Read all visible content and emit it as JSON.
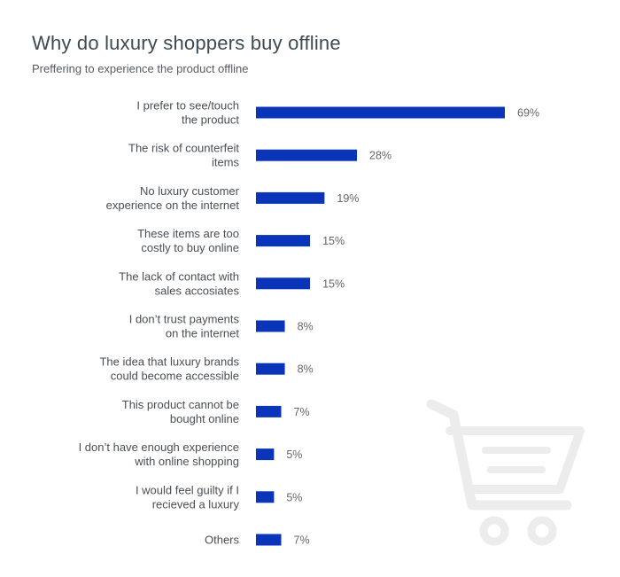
{
  "title": "Why do luxury shoppers buy offline",
  "subtitle": "Preffering to experience the product offline",
  "colors": {
    "bar": "#0b35b8",
    "cart": "#ececec"
  },
  "icons": [
    "shopping-cart-icon"
  ],
  "chart_data": {
    "type": "bar",
    "orientation": "horizontal",
    "title": "Why do luxury shoppers buy offline",
    "subtitle": "Preffering to experience the product offline",
    "xlabel": "",
    "ylabel": "",
    "xlim": [
      0,
      69
    ],
    "grid": false,
    "legend": "none",
    "unit": "%",
    "categories": [
      [
        "I prefer to see/touch",
        "the product"
      ],
      [
        "The risk of counterfeit",
        "items"
      ],
      [
        "No luxury customer",
        "experience on the internet"
      ],
      [
        "These items are too",
        "costly to buy online"
      ],
      [
        "The lack of contact with",
        "sales accosiates"
      ],
      [
        "I don’t trust payments",
        "on the internet"
      ],
      [
        "The idea that luxury brands",
        "could become accessible"
      ],
      [
        "This product cannot be",
        "bought online"
      ],
      [
        "I don’t have enough experience",
        "with online shopping"
      ],
      [
        "I would feel guilty if I",
        "recieved a luxury"
      ],
      [
        "Others"
      ]
    ],
    "values": [
      69,
      28,
      19,
      15,
      15,
      8,
      8,
      7,
      5,
      5,
      7
    ],
    "value_labels": [
      "69%",
      "28%",
      "19%",
      "15%",
      "15%",
      "8%",
      "8%",
      "7%",
      "5%",
      "5%",
      "7%"
    ]
  }
}
